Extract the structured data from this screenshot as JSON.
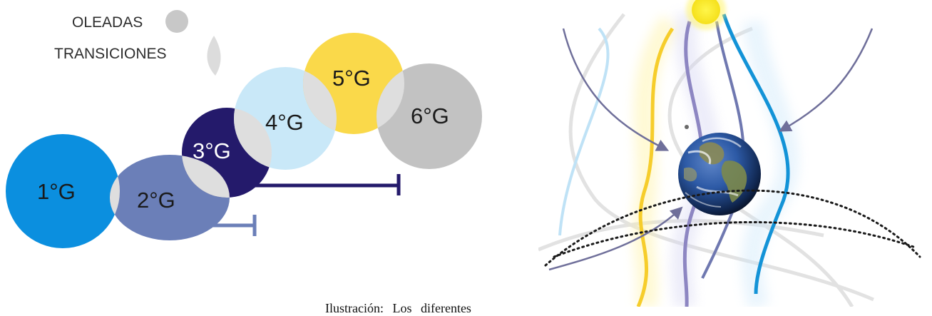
{
  "legend": {
    "oleadas_label": "OLEADAS",
    "transiciones_label": "TRANSICIONES",
    "oleada_color": "#c8c8c8",
    "transicion_color": "#dcdcdc"
  },
  "generations": [
    {
      "label": "1°G",
      "color": "#0b8fdf",
      "text_color": "#1a1a1a"
    },
    {
      "label": "2°G",
      "color": "#6b7fb8",
      "text_color": "#1a1a1a"
    },
    {
      "label": "3°G",
      "color": "#241a6b",
      "text_color": "#ffffff"
    },
    {
      "label": "4°G",
      "color": "#c9e8f8",
      "text_color": "#1a1a1a"
    },
    {
      "label": "5°G",
      "color": "#fad94a",
      "text_color": "#1a1a1a"
    },
    {
      "label": "6°G",
      "color": "#c2c2c2",
      "text_color": "#1a1a1a"
    }
  ],
  "transition_color": "#dedede",
  "bracket_colors": {
    "short": "#6b7fb8",
    "long": "#241a6b"
  },
  "caption": "Ilustración: Los diferentes"
}
